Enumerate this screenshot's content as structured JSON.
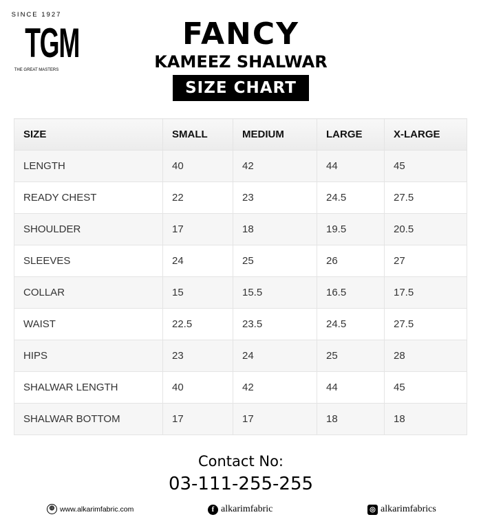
{
  "logo": {
    "since": "SINCE 1927",
    "name": "TGM",
    "tagline": "THE GREAT MASTERS"
  },
  "title": "FANCY",
  "subtitle": "KAMEEZ SHALWAR",
  "badge": "SIZE CHART",
  "table": {
    "headers": [
      "SIZE",
      "SMALL",
      "MEDIUM",
      "LARGE",
      "X-LARGE"
    ],
    "rows": [
      [
        "LENGTH",
        "40",
        "42",
        "44",
        "45"
      ],
      [
        "READY CHEST",
        "22",
        "23",
        "24.5",
        "27.5"
      ],
      [
        "SHOULDER",
        "17",
        "18",
        "19.5",
        "20.5"
      ],
      [
        "SLEEVES",
        "24",
        "25",
        "26",
        "27"
      ],
      [
        "COLLAR",
        "15",
        "15.5",
        "16.5",
        "17.5"
      ],
      [
        "WAIST",
        "22.5",
        "23.5",
        "24.5",
        "27.5"
      ],
      [
        "HIPS",
        "23",
        "24",
        "25",
        "28"
      ],
      [
        "SHALWAR LENGTH",
        "40",
        "42",
        "44",
        "45"
      ],
      [
        "SHALWAR BOTTOM",
        "17",
        "17",
        "18",
        "18"
      ]
    ]
  },
  "contact": {
    "label": "Contact No:",
    "phone": "03-111-255-255"
  },
  "footer": {
    "website": "www.alkarimfabric.com",
    "facebook": "alkarimfabric",
    "instagram": "alkarimfabrics",
    "icons": [
      "globe-icon",
      "facebook-icon",
      "instagram-icon"
    ]
  }
}
